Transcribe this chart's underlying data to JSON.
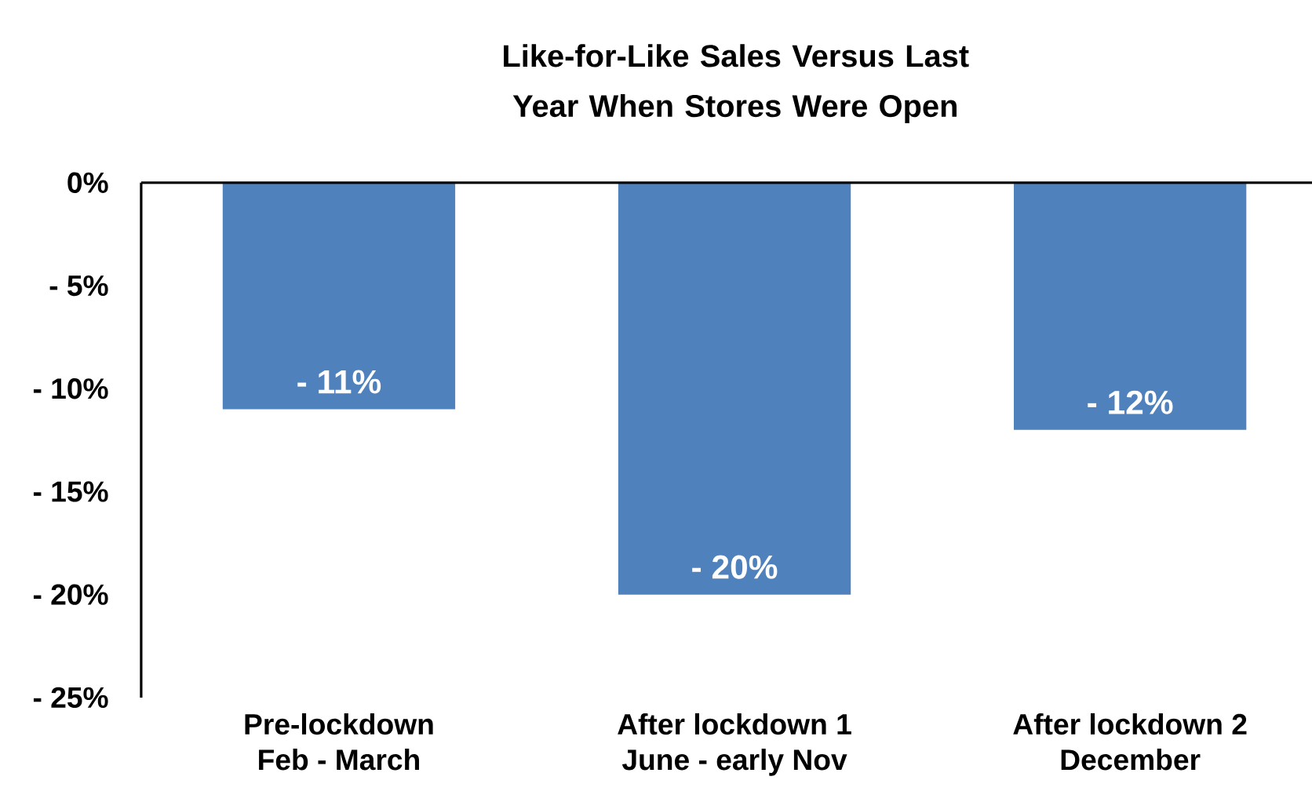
{
  "chart_data": {
    "type": "bar",
    "title": "Like-for-Like Sales Versus Last Year When Stores Were Open",
    "categories": [
      "Pre-lockdown\nFeb - March",
      "After lockdown 1\nJune - early Nov",
      "After lockdown 2\nDecember"
    ],
    "values": [
      -11,
      -20,
      -12
    ],
    "value_labels": [
      "- 11%",
      "- 20%",
      "- 12%"
    ],
    "color": "#4f81bd",
    "ylim": [
      -25,
      0
    ],
    "yticks": [
      {
        "value": -25,
        "label": "- 25%"
      },
      {
        "value": -20,
        "label": "- 20%"
      },
      {
        "value": -15,
        "label": "- 15%"
      },
      {
        "value": -10,
        "label": "- 10%"
      },
      {
        "value": -5,
        "label": "- 5%"
      },
      {
        "value": 0,
        "label": "0%"
      }
    ],
    "grid": false
  }
}
